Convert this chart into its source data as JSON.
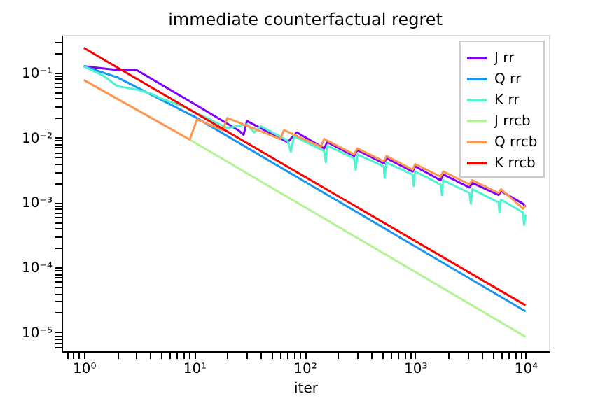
{
  "chart_data": {
    "type": "line",
    "title": "immediate counterfactual regret",
    "xlabel": "iter",
    "log": "xy",
    "grid": false,
    "legend": "top right",
    "marker": "none",
    "line_style": "solid",
    "xlim": [
      0.63,
      16300
    ],
    "ylim": [
      5.1e-06,
      0.38
    ],
    "xticks": [
      {
        "value": 1,
        "label": "10⁰"
      },
      {
        "value": 10,
        "label": "10¹"
      },
      {
        "value": 100,
        "label": "10²"
      },
      {
        "value": 1000,
        "label": "10³"
      },
      {
        "value": 10000,
        "label": "10⁴"
      },
      {
        "value": 0.7,
        "label": null
      },
      {
        "value": 0.8,
        "label": null
      },
      {
        "value": 0.9,
        "label": null
      },
      {
        "value": 2,
        "label": null
      },
      {
        "value": 3,
        "label": null
      },
      {
        "value": 4,
        "label": null
      },
      {
        "value": 5,
        "label": null
      },
      {
        "value": 6,
        "label": null
      },
      {
        "value": 7,
        "label": null
      },
      {
        "value": 8,
        "label": null
      },
      {
        "value": 9,
        "label": null
      },
      {
        "value": 20,
        "label": null
      },
      {
        "value": 30,
        "label": null
      },
      {
        "value": 40,
        "label": null
      },
      {
        "value": 50,
        "label": null
      },
      {
        "value": 60,
        "label": null
      },
      {
        "value": 70,
        "label": null
      },
      {
        "value": 80,
        "label": null
      },
      {
        "value": 90,
        "label": null
      },
      {
        "value": 200,
        "label": null
      },
      {
        "value": 300,
        "label": null
      },
      {
        "value": 400,
        "label": null
      },
      {
        "value": 500,
        "label": null
      },
      {
        "value": 600,
        "label": null
      },
      {
        "value": 700,
        "label": null
      },
      {
        "value": 800,
        "label": null
      },
      {
        "value": 900,
        "label": null
      },
      {
        "value": 2000,
        "label": null
      },
      {
        "value": 3000,
        "label": null
      },
      {
        "value": 4000,
        "label": null
      },
      {
        "value": 5000,
        "label": null
      },
      {
        "value": 6000,
        "label": null
      },
      {
        "value": 7000,
        "label": null
      },
      {
        "value": 8000,
        "label": null
      },
      {
        "value": 9000,
        "label": null
      }
    ],
    "yticks": [
      {
        "value": 1e-05,
        "label": "10⁻⁵"
      },
      {
        "value": 0.0001,
        "label": "10⁻⁴"
      },
      {
        "value": 0.001,
        "label": "10⁻³"
      },
      {
        "value": 0.01,
        "label": "10⁻²"
      },
      {
        "value": 0.1,
        "label": "10⁻¹"
      },
      {
        "value": 6e-06,
        "label": null
      },
      {
        "value": 7e-06,
        "label": null
      },
      {
        "value": 8e-06,
        "label": null
      },
      {
        "value": 9e-06,
        "label": null
      },
      {
        "value": 2e-05,
        "label": null
      },
      {
        "value": 3e-05,
        "label": null
      },
      {
        "value": 4e-05,
        "label": null
      },
      {
        "value": 5e-05,
        "label": null
      },
      {
        "value": 6e-05,
        "label": null
      },
      {
        "value": 7e-05,
        "label": null
      },
      {
        "value": 8e-05,
        "label": null
      },
      {
        "value": 9e-05,
        "label": null
      },
      {
        "value": 0.0002,
        "label": null
      },
      {
        "value": 0.0003,
        "label": null
      },
      {
        "value": 0.0004,
        "label": null
      },
      {
        "value": 0.0005,
        "label": null
      },
      {
        "value": 0.0006,
        "label": null
      },
      {
        "value": 0.0007,
        "label": null
      },
      {
        "value": 0.0008,
        "label": null
      },
      {
        "value": 0.0009,
        "label": null
      },
      {
        "value": 0.002,
        "label": null
      },
      {
        "value": 0.003,
        "label": null
      },
      {
        "value": 0.004,
        "label": null
      },
      {
        "value": 0.005,
        "label": null
      },
      {
        "value": 0.006,
        "label": null
      },
      {
        "value": 0.007,
        "label": null
      },
      {
        "value": 0.008,
        "label": null
      },
      {
        "value": 0.009,
        "label": null
      },
      {
        "value": 0.02,
        "label": null
      },
      {
        "value": 0.03,
        "label": null
      },
      {
        "value": 0.04,
        "label": null
      },
      {
        "value": 0.05,
        "label": null
      },
      {
        "value": 0.06,
        "label": null
      },
      {
        "value": 0.07,
        "label": null
      },
      {
        "value": 0.08,
        "label": null
      },
      {
        "value": 0.09,
        "label": null
      },
      {
        "value": 0.2,
        "label": null
      },
      {
        "value": 0.3,
        "label": null
      }
    ],
    "series": [
      {
        "name": "J rr",
        "color": "#8000ff",
        "x": [
          1,
          2,
          3,
          10,
          25,
          28,
          30,
          70,
          85,
          150,
          160,
          280,
          300,
          520,
          550,
          950,
          1000,
          1700,
          1800,
          3100,
          3300,
          5700,
          6000,
          9500,
          10000
        ],
        "values": [
          0.125,
          0.11,
          0.11,
          0.033,
          0.013,
          0.011,
          0.018,
          0.0085,
          0.012,
          0.0068,
          0.0085,
          0.0052,
          0.0064,
          0.004,
          0.0048,
          0.003,
          0.0036,
          0.0022,
          0.0027,
          0.0017,
          0.002,
          0.0013,
          0.0015,
          0.00095,
          0.00085
        ]
      },
      {
        "name": "Q rr",
        "color": "#1996f3",
        "x": [
          1,
          2,
          10,
          100,
          1000,
          10000
        ],
        "values": [
          0.125,
          0.085,
          0.021,
          0.0021,
          0.00021,
          2.1e-05
        ]
      },
      {
        "name": "K rr",
        "color": "#4df3ce",
        "x": [
          1,
          1.5,
          2,
          3,
          4,
          5,
          8,
          20,
          30,
          35,
          40,
          70,
          75,
          80,
          150,
          155,
          160,
          280,
          290,
          300,
          520,
          530,
          550,
          950,
          970,
          1000,
          1700,
          1750,
          1800,
          3100,
          3200,
          3300,
          5700,
          5800,
          6000,
          9500,
          9700,
          10000
        ],
        "values": [
          0.125,
          0.09,
          0.062,
          0.055,
          0.048,
          0.04,
          0.03,
          0.014,
          0.016,
          0.012,
          0.015,
          0.009,
          0.006,
          0.0105,
          0.0062,
          0.0042,
          0.0075,
          0.0048,
          0.0032,
          0.0055,
          0.0036,
          0.0024,
          0.0041,
          0.0027,
          0.0018,
          0.003,
          0.0019,
          0.0013,
          0.0022,
          0.0014,
          0.00095,
          0.0016,
          0.001,
          0.0007,
          0.0011,
          0.0007,
          0.00045,
          0.00065
        ]
      },
      {
        "name": "J rrcb",
        "color": "#b2f396",
        "x": [
          9.1,
          10000
        ],
        "values": [
          0.0093,
          8.5e-06
        ]
      },
      {
        "name": "Q rrcb",
        "color": "#ff964f",
        "x": [
          1,
          9.1,
          10.6,
          18,
          20,
          60,
          65,
          140,
          150,
          280,
          300,
          520,
          550,
          950,
          1000,
          1700,
          1800,
          3100,
          3300,
          5700,
          6000,
          9500,
          10000
        ],
        "values": [
          0.077,
          0.0093,
          0.019,
          0.013,
          0.02,
          0.0095,
          0.013,
          0.0072,
          0.0095,
          0.0055,
          0.0068,
          0.0043,
          0.0052,
          0.0032,
          0.0039,
          0.0025,
          0.003,
          0.0019,
          0.0022,
          0.0014,
          0.0016,
          0.0008,
          0.0009
        ]
      },
      {
        "name": "K rrcb",
        "color": "#ff0000",
        "x": [
          1,
          10000
        ],
        "values": [
          0.24,
          2.6e-05
        ]
      }
    ]
  }
}
